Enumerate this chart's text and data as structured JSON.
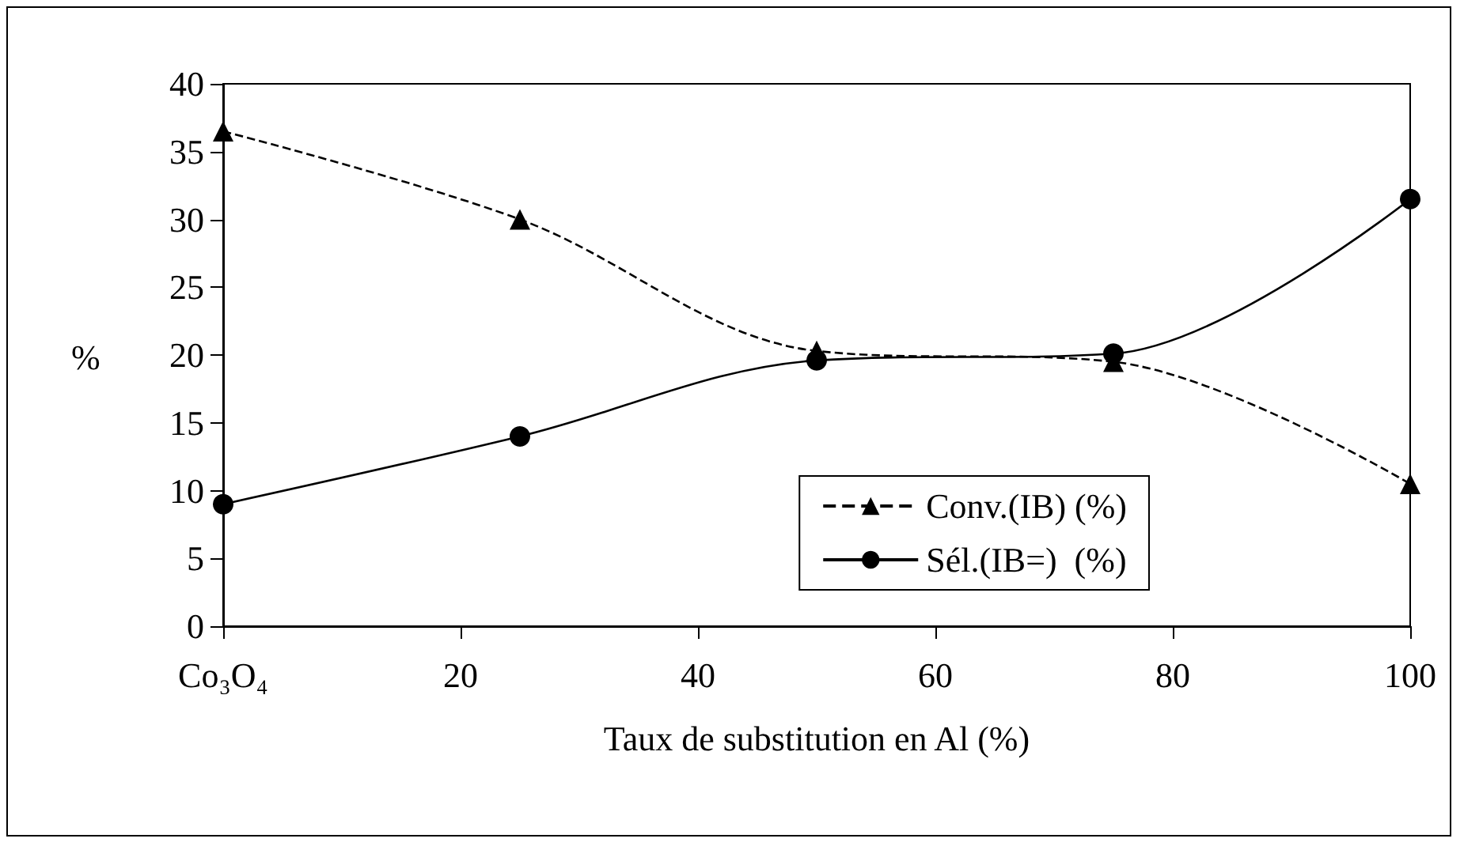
{
  "chart_data": {
    "type": "line",
    "xlabel": "Taux de substitution en Al (%)",
    "ylabel": "%",
    "xlim": [
      0,
      100
    ],
    "xticks": [
      {
        "value": 0,
        "label": "Co₃O₄"
      },
      20,
      40,
      60,
      80,
      100
    ],
    "ylim": [
      0,
      40
    ],
    "yticks": [
      0,
      5,
      10,
      15,
      20,
      25,
      30,
      35,
      40
    ],
    "grid": false,
    "legend": "bottom right",
    "series": [
      {
        "name": "Conv.(IB) (%)",
        "color": "#000000",
        "marker": "triangle",
        "line_style": "dashed",
        "x": [
          0,
          25,
          50,
          75,
          100
        ],
        "values": [
          36.5,
          30,
          20.3,
          19.5,
          10.5
        ]
      },
      {
        "name": "Sél.(IB=)  (%)",
        "color": "#000000",
        "marker": "circle",
        "line_style": "solid",
        "x": [
          0,
          25,
          50,
          75,
          100
        ],
        "values": [
          9,
          14,
          19.6,
          20.1,
          31.5
        ]
      }
    ]
  }
}
